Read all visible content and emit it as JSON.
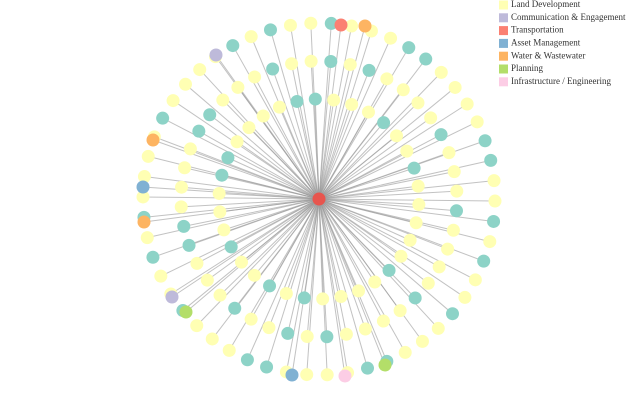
{
  "legend": {
    "items": [
      {
        "label": "Land Development",
        "color": "#ffffb3"
      },
      {
        "label": "Communication & Engagement",
        "color": "#bebada"
      },
      {
        "label": "Transportation",
        "color": "#fb8072"
      },
      {
        "label": "Asset Management",
        "color": "#80b1d3"
      },
      {
        "label": "Water & Wastewater",
        "color": "#fdb462"
      },
      {
        "label": "Planning",
        "color": "#b3de69"
      },
      {
        "label": "Infrastructure / Engineering",
        "color": "#fccde5"
      }
    ]
  }
}
